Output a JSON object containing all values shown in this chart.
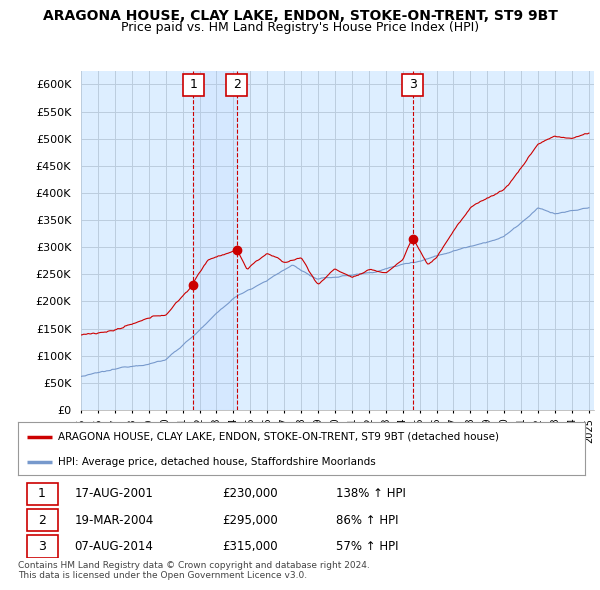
{
  "title": "ARAGONA HOUSE, CLAY LAKE, ENDON, STOKE-ON-TRENT, ST9 9BT",
  "subtitle": "Price paid vs. HM Land Registry's House Price Index (HPI)",
  "ylim": [
    0,
    625000
  ],
  "yticks": [
    0,
    50000,
    100000,
    150000,
    200000,
    250000,
    300000,
    350000,
    400000,
    450000,
    500000,
    550000,
    600000
  ],
  "transactions": [
    {
      "date": "17-AUG-2001",
      "price": 230000,
      "pct": "138%",
      "label": "1"
    },
    {
      "date": "19-MAR-2004",
      "price": 295000,
      "pct": "86%",
      "label": "2"
    },
    {
      "date": "07-AUG-2014",
      "price": 315000,
      "pct": "57%",
      "label": "3"
    }
  ],
  "transaction_dates_decimal": [
    2001.625,
    2004.208,
    2014.583
  ],
  "transaction_prices": [
    230000,
    295000,
    315000
  ],
  "house_color": "#cc0000",
  "hpi_color": "#7799cc",
  "legend_house": "ARAGONA HOUSE, CLAY LAKE, ENDON, STOKE-ON-TRENT, ST9 9BT (detached house)",
  "legend_hpi": "HPI: Average price, detached house, Staffordshire Moorlands",
  "footer1": "Contains HM Land Registry data © Crown copyright and database right 2024.",
  "footer2": "This data is licensed under the Open Government Licence v3.0.",
  "background_color": "#ffffff",
  "chart_bg_color": "#ddeeff",
  "grid_color": "#bbccdd",
  "title_fontsize": 10,
  "subtitle_fontsize": 9
}
